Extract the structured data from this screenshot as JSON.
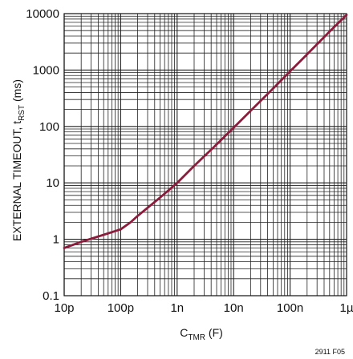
{
  "chart_data": {
    "type": "line",
    "title": "",
    "xlabel": {
      "main": "C",
      "sub": "TMR",
      "suffix": " (F)"
    },
    "ylabel": {
      "main": "EXTERNAL TIMEOUT, t",
      "sub": "RST",
      "suffix": " (ms)"
    },
    "x_scale": "log",
    "y_scale": "log",
    "xlim": [
      1e-11,
      1e-06
    ],
    "ylim": [
      0.1,
      10000
    ],
    "x_ticks": [
      {
        "value": 1e-11,
        "label": "10p"
      },
      {
        "value": 1e-10,
        "label": "100p"
      },
      {
        "value": 1e-09,
        "label": "1n"
      },
      {
        "value": 1e-08,
        "label": "10n"
      },
      {
        "value": 1e-07,
        "label": "100n"
      },
      {
        "value": 1e-06,
        "label": "1µ"
      }
    ],
    "y_ticks": [
      {
        "value": 0.1,
        "label": "0.1"
      },
      {
        "value": 1,
        "label": "1"
      },
      {
        "value": 10,
        "label": "10"
      },
      {
        "value": 100,
        "label": "100"
      },
      {
        "value": 1000,
        "label": "1000"
      },
      {
        "value": 10000,
        "label": "10000"
      }
    ],
    "grid": true,
    "series": [
      {
        "color": "#8b1c3c",
        "x": [
          1e-11,
          2e-11,
          5e-11,
          1e-10,
          1.5e-10,
          2e-10,
          5e-10,
          1e-09,
          2e-09,
          5e-09,
          1e-08,
          2e-08,
          5e-08,
          1e-07,
          2e-07,
          5e-07,
          1e-06
        ],
        "y": [
          0.7,
          0.9,
          1.2,
          1.5,
          2.0,
          2.6,
          5.5,
          10,
          20,
          48,
          95,
          190,
          470,
          950,
          1900,
          4800,
          9500
        ]
      }
    ],
    "figure_id": "2911 F05"
  }
}
